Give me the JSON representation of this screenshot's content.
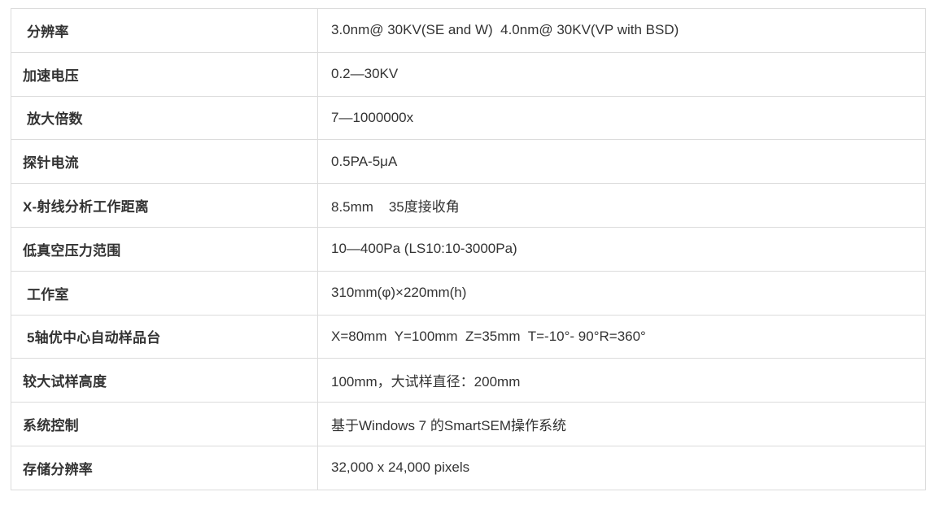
{
  "table": {
    "description": "SEM instrument specification table",
    "colors": {
      "border": "#dcdcdc",
      "text": "#333333",
      "background": "#ffffff"
    },
    "rows": [
      {
        "label": " 分辨率",
        "value": "3.0nm@ 30KV(SE and W)  4.0nm@ 30KV(VP with BSD)"
      },
      {
        "label": "加速电压",
        "value": "0.2—30KV"
      },
      {
        "label": " 放大倍数",
        "value": "7—1000000x"
      },
      {
        "label": "探针电流",
        "value": "0.5PA-5μA"
      },
      {
        "label": "X-射线分析工作距离",
        "value": "8.5mm    35度接收角"
      },
      {
        "label": "低真空压力范围",
        "value": "10—400Pa (LS10:10-3000Pa)"
      },
      {
        "label": " 工作室",
        "value": "310mm(φ)×220mm(h)"
      },
      {
        "label": " 5轴优中心自动样品台",
        "value": "X=80mm  Y=100mm  Z=35mm  T=-10°- 90°R=360°"
      },
      {
        "label": "较大试样高度",
        "value": "100mm，大试样直径：200mm"
      },
      {
        "label": "系统控制",
        "value": "基于Windows 7 的SmartSEM操作系统"
      },
      {
        "label": "存储分辨率",
        "value": "32,000 x 24,000 pixels"
      }
    ]
  }
}
